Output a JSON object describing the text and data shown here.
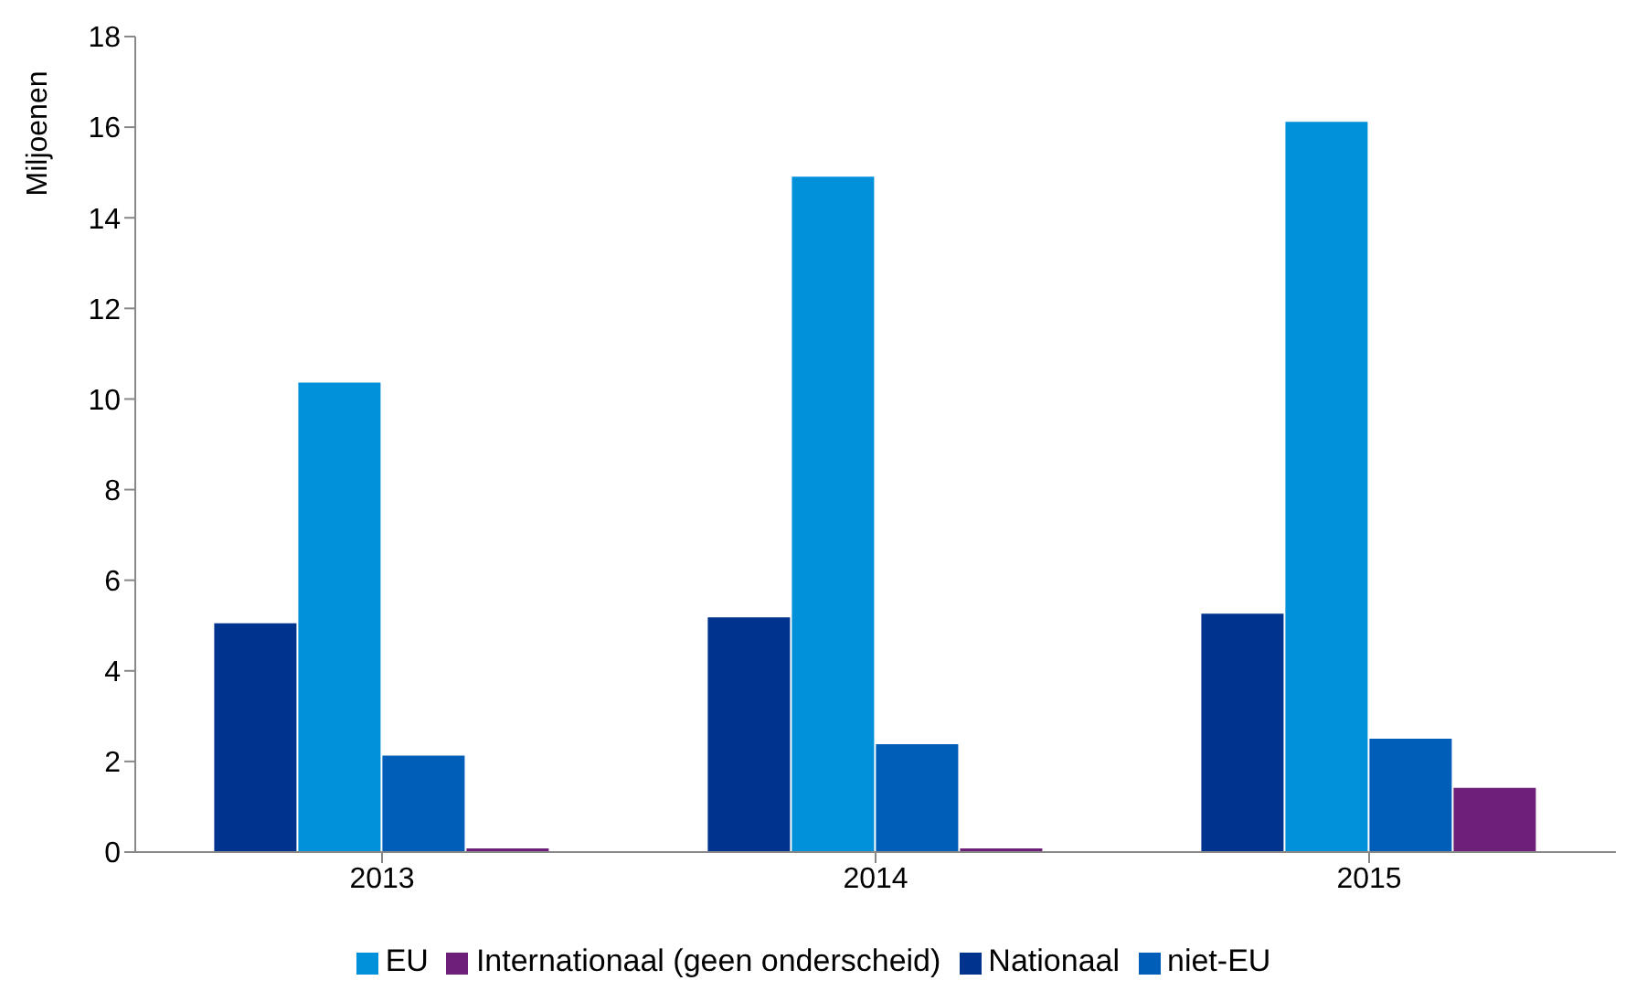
{
  "chart_data": {
    "type": "bar",
    "ylabel": "Miljoenen",
    "categories": [
      "2013",
      "2014",
      "2015"
    ],
    "series": [
      {
        "name": "Nationaal",
        "color": "#00338d",
        "values": [
          5.05,
          5.18,
          5.26
        ]
      },
      {
        "name": "EU",
        "color": "#0091da",
        "values": [
          10.36,
          14.91,
          16.12
        ]
      },
      {
        "name": "niet-EU",
        "color": "#005eb8",
        "values": [
          2.13,
          2.38,
          2.5
        ]
      },
      {
        "name": "Internationaal (geen onderscheid)",
        "color": "#6d2077",
        "values": [
          0.08,
          0.08,
          1.42
        ]
      }
    ],
    "ylim": [
      0,
      18
    ],
    "yticks": [
      0,
      2,
      4,
      6,
      8,
      10,
      12,
      14,
      16,
      18
    ],
    "grid": false,
    "legend": "bottom"
  }
}
